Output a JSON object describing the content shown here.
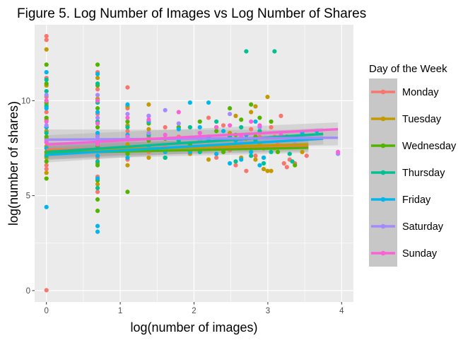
{
  "chart_data": {
    "type": "scatter",
    "title": "Figure 5. Log Number of Images vs Log Number of Shares",
    "xlabel": "log(number of images)",
    "ylabel": "log(number of shares)",
    "xlim": [
      -0.16,
      4.16
    ],
    "ylim": [
      -0.6,
      14.0
    ],
    "x_ticks": [
      0,
      1,
      2,
      3,
      4
    ],
    "x_tick_labels": [
      "0",
      "1",
      "2",
      "3",
      "4"
    ],
    "y_ticks": [
      0,
      5,
      10
    ],
    "y_tick_labels": [
      "0",
      "5",
      "10"
    ],
    "grid": true,
    "background": "#ebebeb",
    "legend": {
      "title": "Day of the Week",
      "position": "right"
    },
    "series": [
      {
        "name": "Monday",
        "color": "#F8766D",
        "trend": {
          "x": [
            0,
            3.55
          ],
          "y": [
            7.43,
            7.6
          ],
          "band": 0.28
        },
        "points": [
          [
            0,
            13.4
          ],
          [
            0,
            13.2
          ],
          [
            0,
            11.2
          ],
          [
            0,
            10.2
          ],
          [
            0,
            9.4
          ],
          [
            0,
            8.6
          ],
          [
            0,
            8.0
          ],
          [
            0,
            7.2
          ],
          [
            0,
            6.6
          ],
          [
            0,
            6.4
          ],
          [
            0,
            0.02
          ],
          [
            0.693,
            11.5
          ],
          [
            0.693,
            10.6
          ],
          [
            0.693,
            9.3
          ],
          [
            0.693,
            8.2
          ],
          [
            0.693,
            7.0
          ],
          [
            0.693,
            6.0
          ],
          [
            0.693,
            5.2
          ],
          [
            1.099,
            10.7
          ],
          [
            1.099,
            9.6
          ],
          [
            1.099,
            8.4
          ],
          [
            1.099,
            7.4
          ],
          [
            1.099,
            6.9
          ],
          [
            1.386,
            9.2
          ],
          [
            1.386,
            8.1
          ],
          [
            1.386,
            7.3
          ],
          [
            1.609,
            8.6
          ],
          [
            1.609,
            7.6
          ],
          [
            1.792,
            8.1
          ],
          [
            1.946,
            7.6
          ],
          [
            2.079,
            8.3
          ],
          [
            2.197,
            9.1
          ],
          [
            2.303,
            7.0
          ],
          [
            2.398,
            8.7
          ],
          [
            2.485,
            7.4
          ],
          [
            2.565,
            6.6
          ],
          [
            2.639,
            7.6
          ],
          [
            2.708,
            6.3
          ],
          [
            2.773,
            8.5
          ],
          [
            2.833,
            7.1
          ],
          [
            2.89,
            8.1
          ],
          [
            2.944,
            7.0
          ],
          [
            2.996,
            7.6
          ],
          [
            3.045,
            8.6
          ],
          [
            3.091,
            8.1
          ],
          [
            3.135,
            7.7
          ],
          [
            3.178,
            9.2
          ],
          [
            3.219,
            6.7
          ],
          [
            3.258,
            6.5
          ],
          [
            3.296,
            6.9
          ],
          [
            3.332,
            7.6
          ],
          [
            3.367,
            6.7
          ],
          [
            3.526,
            7.1
          ]
        ]
      },
      {
        "name": "Tuesday",
        "color": "#C49A00",
        "trend": {
          "x": [
            0,
            3.55
          ],
          "y": [
            7.35,
            7.7
          ],
          "band": 0.3
        },
        "points": [
          [
            0,
            12.7
          ],
          [
            0,
            10.8
          ],
          [
            0,
            9.8
          ],
          [
            0,
            9.0
          ],
          [
            0,
            8.4
          ],
          [
            0,
            7.6
          ],
          [
            0,
            7.0
          ],
          [
            0,
            6.2
          ],
          [
            0.693,
            11.2
          ],
          [
            0.693,
            10.1
          ],
          [
            0.693,
            8.9
          ],
          [
            0.693,
            7.9
          ],
          [
            0.693,
            6.7
          ],
          [
            0.693,
            5.6
          ],
          [
            1.099,
            9.7
          ],
          [
            1.099,
            8.7
          ],
          [
            1.099,
            7.7
          ],
          [
            1.099,
            6.6
          ],
          [
            1.386,
            9.8
          ],
          [
            1.386,
            8.5
          ],
          [
            1.386,
            7.0
          ],
          [
            1.609,
            8.0
          ],
          [
            1.792,
            8.6
          ],
          [
            1.946,
            7.2
          ],
          [
            2.079,
            7.9
          ],
          [
            2.197,
            6.9
          ],
          [
            2.303,
            8.6
          ],
          [
            2.398,
            7.5
          ],
          [
            2.485,
            8.3
          ],
          [
            2.565,
            9.2
          ],
          [
            2.639,
            7.0
          ],
          [
            2.708,
            8.0
          ],
          [
            2.773,
            9.4
          ],
          [
            2.833,
            6.9
          ],
          [
            2.89,
            7.7
          ],
          [
            2.944,
            6.4
          ],
          [
            2.996,
            6.3
          ],
          [
            3.045,
            6.3
          ],
          [
            3.091,
            7.5
          ],
          [
            2.996,
            10.2
          ],
          [
            2.833,
            9.7
          ],
          [
            3.466,
            7.3
          ]
        ]
      },
      {
        "name": "Wednesday",
        "color": "#53B400",
        "trend": {
          "x": [
            0,
            3.55
          ],
          "y": [
            7.25,
            7.52
          ],
          "band": 0.26
        },
        "points": [
          [
            0,
            11.9
          ],
          [
            0,
            10.9
          ],
          [
            0,
            9.9
          ],
          [
            0,
            9.1
          ],
          [
            0,
            8.1
          ],
          [
            0,
            7.3
          ],
          [
            0,
            6.8
          ],
          [
            0,
            5.9
          ],
          [
            0.693,
            11.9
          ],
          [
            0.693,
            10.8
          ],
          [
            0.693,
            9.6
          ],
          [
            0.693,
            8.6
          ],
          [
            0.693,
            7.6
          ],
          [
            0.693,
            6.6
          ],
          [
            0.693,
            5.8
          ],
          [
            0.693,
            4.8
          ],
          [
            0.693,
            4.2
          ],
          [
            1.099,
            8.9
          ],
          [
            1.099,
            7.2
          ],
          [
            1.099,
            5.2
          ],
          [
            1.386,
            8.8
          ],
          [
            1.386,
            7.9
          ],
          [
            1.609,
            8.0
          ],
          [
            1.609,
            7.0
          ],
          [
            1.792,
            8.6
          ],
          [
            1.946,
            7.7
          ],
          [
            2.079,
            8.9
          ],
          [
            2.197,
            7.6
          ],
          [
            2.303,
            8.4
          ],
          [
            2.398,
            7.3
          ],
          [
            2.485,
            9.6
          ],
          [
            2.565,
            8.2
          ],
          [
            2.639,
            9.0
          ],
          [
            2.708,
            7.5
          ],
          [
            2.773,
            9.8
          ],
          [
            2.833,
            8.1
          ],
          [
            2.89,
            9.1
          ],
          [
            2.944,
            7.5
          ],
          [
            3.045,
            8.9
          ],
          [
            3.135,
            7.3
          ],
          [
            3.258,
            8.1
          ],
          [
            3.367,
            6.6
          ]
        ]
      },
      {
        "name": "Thursday",
        "color": "#00C094",
        "trend": {
          "x": [
            0,
            3.75
          ],
          "y": [
            7.3,
            8.25
          ],
          "band": 0.32
        },
        "points": [
          [
            0,
            11.1
          ],
          [
            0,
            10.5
          ],
          [
            0,
            9.7
          ],
          [
            0,
            8.3
          ],
          [
            0,
            7.1
          ],
          [
            0.693,
            10.9
          ],
          [
            0.693,
            9.9
          ],
          [
            0.693,
            8.9
          ],
          [
            0.693,
            7.8
          ],
          [
            0.693,
            6.8
          ],
          [
            0.693,
            5.4
          ],
          [
            1.099,
            8.6
          ],
          [
            1.099,
            7.5
          ],
          [
            1.386,
            8.2
          ],
          [
            1.386,
            7.5
          ],
          [
            1.609,
            7.0
          ],
          [
            1.792,
            7.9
          ],
          [
            1.946,
            8.6
          ],
          [
            2.079,
            7.3
          ],
          [
            2.197,
            8.1
          ],
          [
            2.303,
            8.9
          ],
          [
            2.398,
            7.6
          ],
          [
            2.485,
            8.1
          ],
          [
            2.565,
            6.8
          ],
          [
            2.639,
            8.6
          ],
          [
            2.708,
            12.6
          ],
          [
            2.773,
            7.1
          ],
          [
            2.833,
            7.9
          ],
          [
            2.89,
            8.4
          ],
          [
            2.944,
            6.7
          ],
          [
            3.045,
            7.3
          ],
          [
            3.091,
            12.6
          ],
          [
            3.296,
            7.2
          ],
          [
            3.332,
            6.8
          ]
        ]
      },
      {
        "name": "Friday",
        "color": "#00B6EB",
        "trend": {
          "x": [
            0,
            3.75
          ],
          "y": [
            7.15,
            8.0
          ],
          "band": 0.3
        },
        "points": [
          [
            0,
            11.5
          ],
          [
            0,
            9.6
          ],
          [
            0,
            8.6
          ],
          [
            0,
            7.5
          ],
          [
            0,
            4.4
          ],
          [
            0.693,
            11.4
          ],
          [
            0.693,
            9.4
          ],
          [
            0.693,
            8.3
          ],
          [
            0.693,
            7.1
          ],
          [
            0.693,
            5.9
          ],
          [
            0.693,
            3.4
          ],
          [
            0.693,
            3.1
          ],
          [
            1.099,
            9.8
          ],
          [
            1.099,
            8.2
          ],
          [
            1.099,
            7.0
          ],
          [
            1.386,
            8.9
          ],
          [
            1.386,
            7.6
          ],
          [
            1.609,
            7.3
          ],
          [
            1.792,
            8.5
          ],
          [
            1.946,
            7.3
          ],
          [
            2.079,
            8.6
          ],
          [
            2.197,
            7.9
          ],
          [
            2.303,
            7.2
          ],
          [
            2.398,
            8.4
          ],
          [
            2.485,
            6.7
          ],
          [
            2.565,
            7.9
          ],
          [
            2.639,
            6.9
          ],
          [
            2.708,
            8.2
          ],
          [
            2.773,
            7.3
          ],
          [
            2.833,
            8.9
          ],
          [
            2.89,
            6.6
          ],
          [
            2.944,
            7.0
          ],
          [
            2.996,
            7.6
          ],
          [
            2.197,
            9.9
          ],
          [
            1.946,
            9.9
          ],
          [
            3.466,
            8.3
          ],
          [
            3.664,
            8.4
          ]
        ]
      },
      {
        "name": "Saturday",
        "color": "#A58AFF",
        "trend": {
          "x": [
            0,
            3.95
          ],
          "y": [
            7.95,
            8.05
          ],
          "band": 0.4
        },
        "points": [
          [
            0,
            10.3
          ],
          [
            0,
            8.7
          ],
          [
            0,
            7.9
          ],
          [
            0.693,
            10.3
          ],
          [
            0.693,
            9.1
          ],
          [
            0.693,
            8.1
          ],
          [
            0.693,
            7.4
          ],
          [
            1.099,
            9.3
          ],
          [
            1.099,
            8.0
          ],
          [
            1.386,
            9.2
          ],
          [
            1.386,
            8.3
          ],
          [
            1.609,
            9.5
          ],
          [
            1.792,
            8.8
          ],
          [
            2.079,
            8.0
          ],
          [
            2.485,
            9.3
          ],
          [
            2.639,
            7.8
          ],
          [
            2.89,
            8.6
          ],
          [
            3.367,
            7.7
          ],
          [
            3.951,
            7.2
          ]
        ]
      },
      {
        "name": "Sunday",
        "color": "#FB61D7",
        "trend": {
          "x": [
            0,
            3.95
          ],
          "y": [
            7.7,
            8.5
          ],
          "band": 0.36
        },
        "points": [
          [
            0,
            10.0
          ],
          [
            0,
            8.9
          ],
          [
            0,
            7.8
          ],
          [
            0.693,
            10.0
          ],
          [
            0.693,
            8.8
          ],
          [
            0.693,
            7.7
          ],
          [
            1.099,
            9.1
          ],
          [
            1.099,
            8.1
          ],
          [
            1.386,
            9.0
          ],
          [
            1.609,
            8.2
          ],
          [
            1.792,
            9.4
          ],
          [
            2.079,
            8.3
          ],
          [
            2.303,
            8.6
          ],
          [
            2.485,
            8.7
          ],
          [
            2.639,
            8.1
          ],
          [
            2.773,
            8.9
          ],
          [
            2.89,
            8.7
          ],
          [
            3.178,
            8.2
          ],
          [
            3.951,
            7.3
          ]
        ]
      }
    ]
  }
}
